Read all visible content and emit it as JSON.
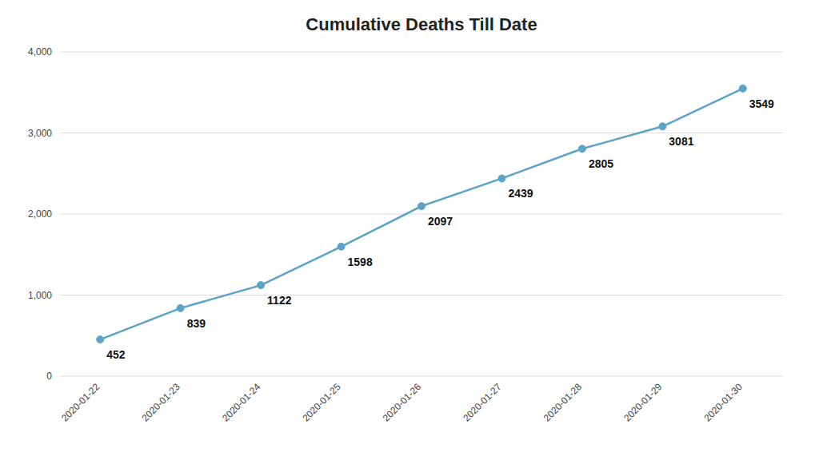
{
  "chart_data": {
    "type": "line",
    "title": "Cumulative Deaths Till Date",
    "categories": [
      "2020-01-22",
      "2020-01-23",
      "2020-01-24",
      "2020-01-25",
      "2020-01-26",
      "2020-01-27",
      "2020-01-28",
      "2020-01-29",
      "2020-01-30"
    ],
    "values": [
      452,
      839,
      1122,
      1598,
      2097,
      2439,
      2805,
      3081,
      3549
    ],
    "color": "#5ba3c9",
    "marker": "circle",
    "ylim": [
      0,
      4000
    ],
    "yticks": [
      0,
      {
        "value": 1000,
        "label": "1,000"
      },
      {
        "value": 2000,
        "label": "2,000"
      },
      {
        "value": 3000,
        "label": "3,000"
      },
      {
        "value": 4000,
        "label": "4,000"
      }
    ],
    "grid": true,
    "data_labels": true
  }
}
